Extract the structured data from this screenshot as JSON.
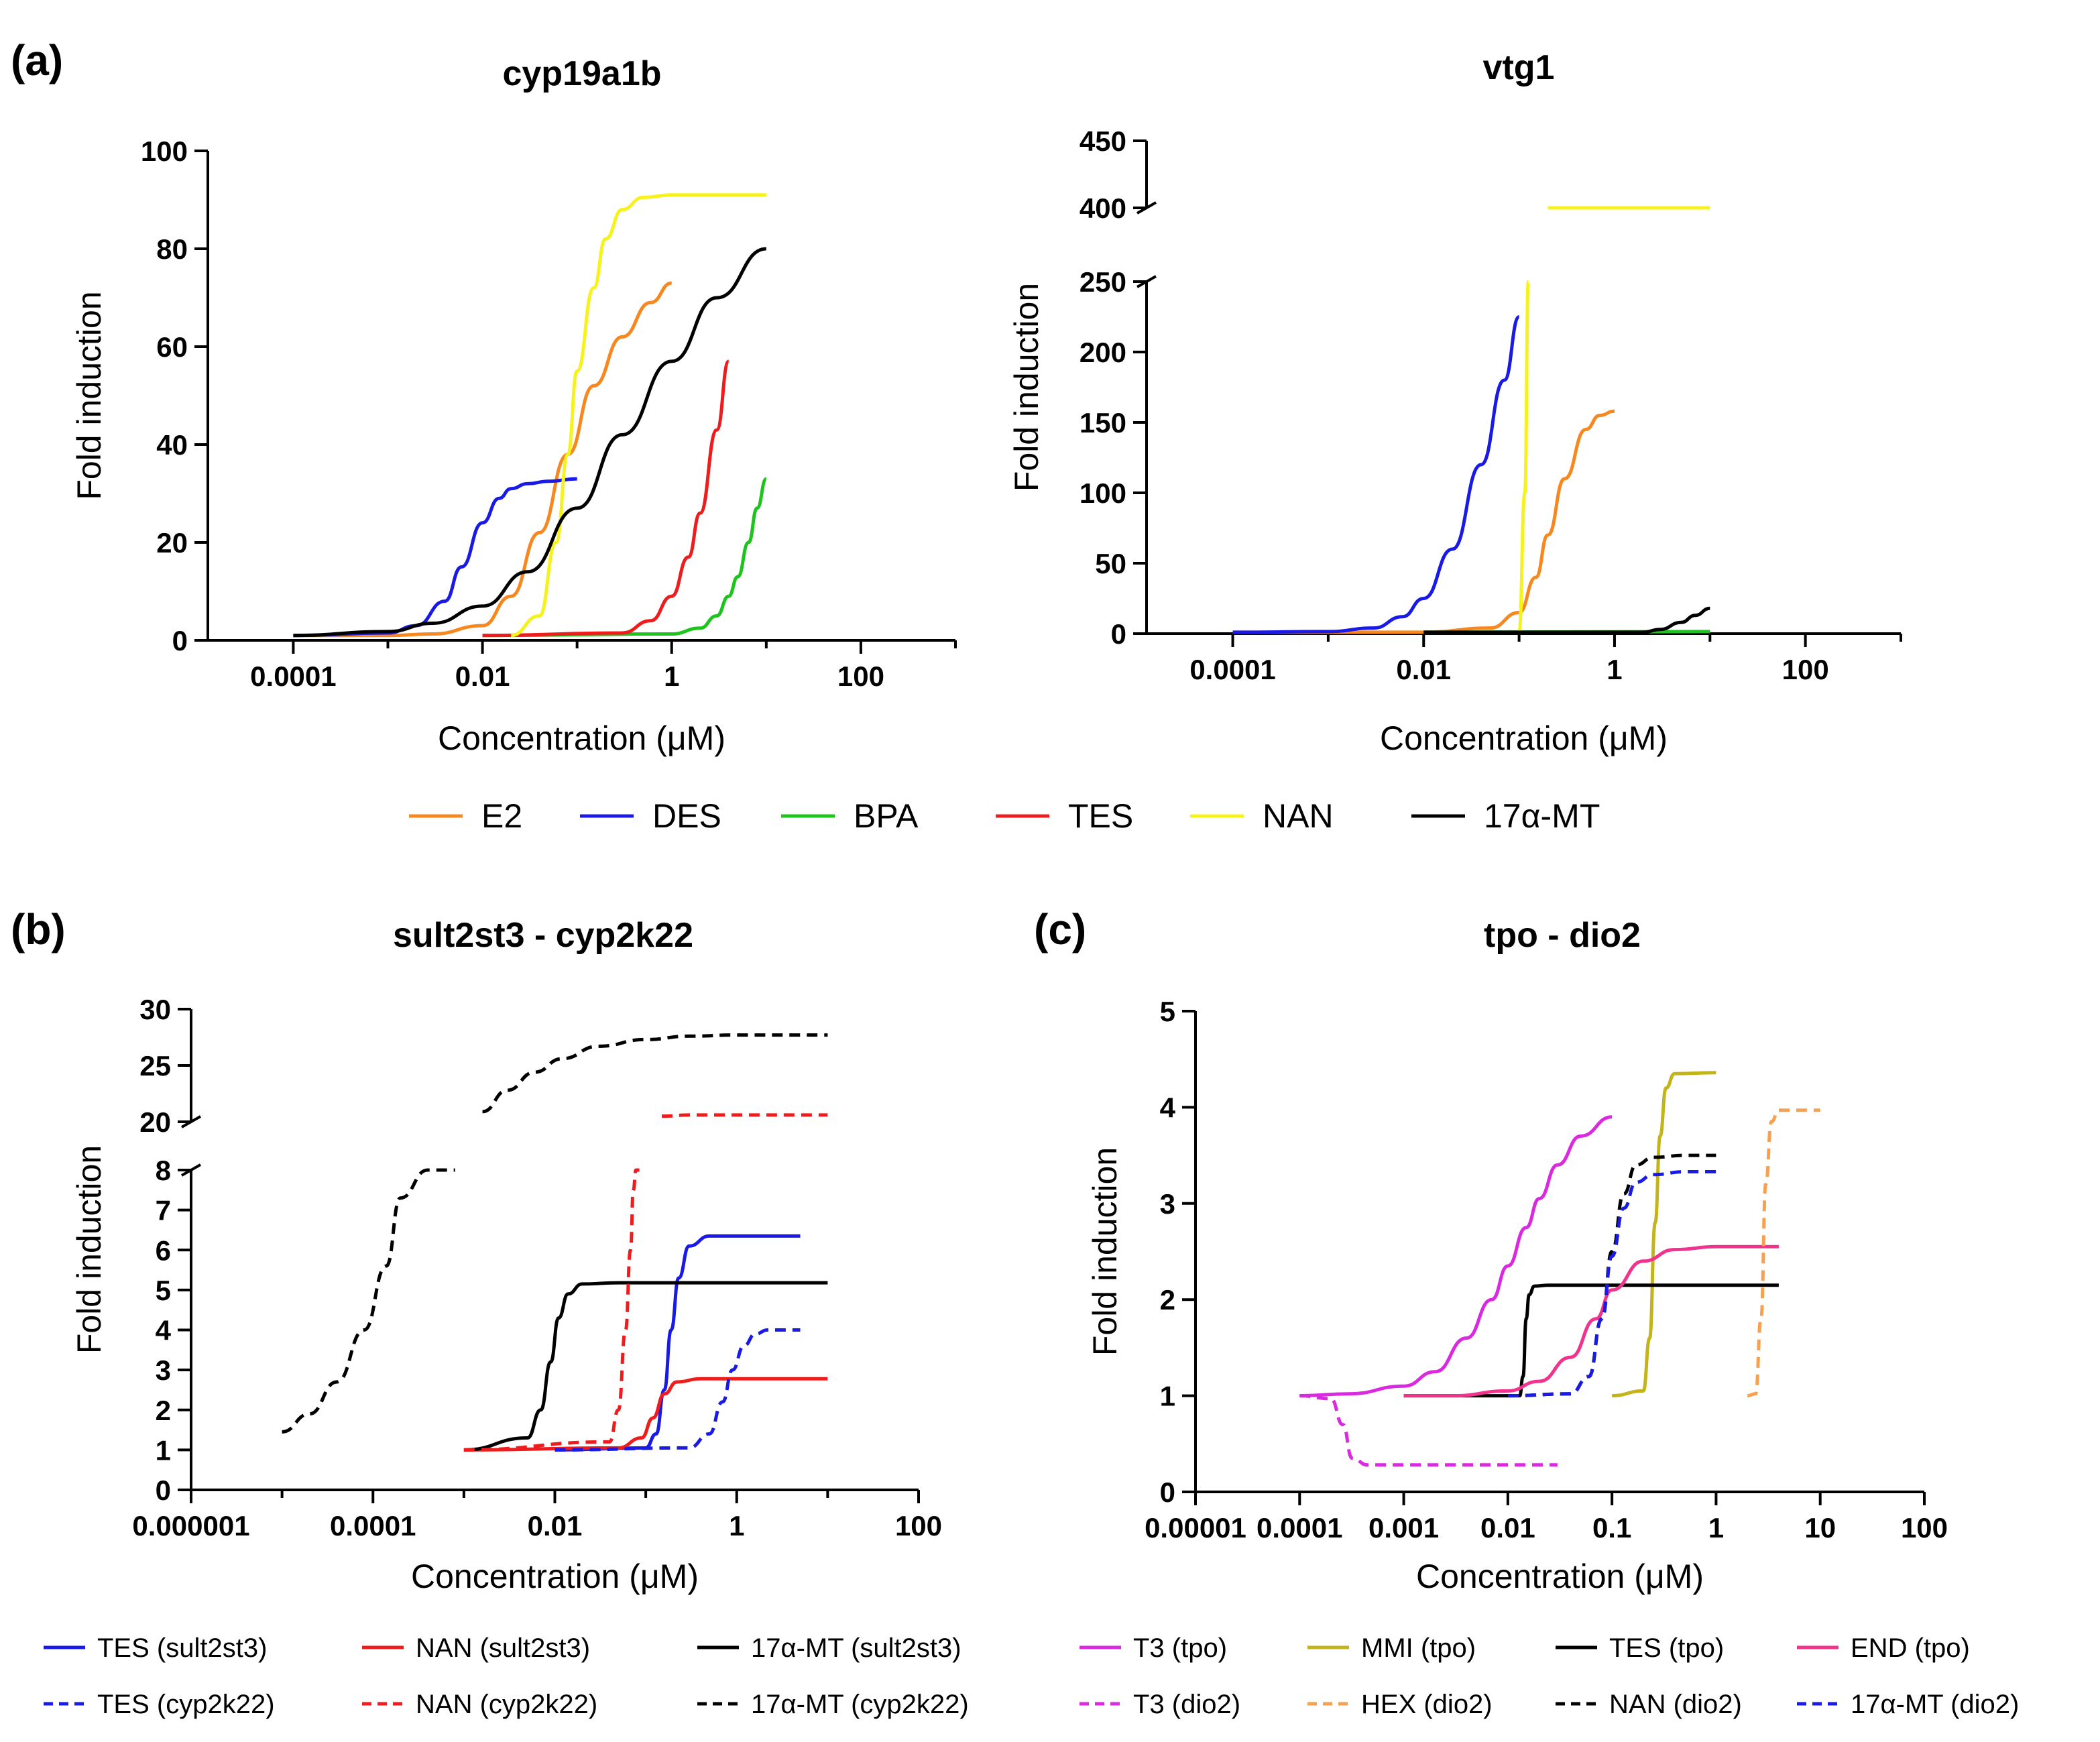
{
  "panel_labels": {
    "a": "(a)",
    "b": "(b)",
    "c": "(c)"
  },
  "legend_a": [
    {
      "label": "E2",
      "color": "#f7871f",
      "dash": false
    },
    {
      "label": "DES",
      "color": "#1a1ae6",
      "dash": false
    },
    {
      "label": "BPA",
      "color": "#1ec41e",
      "dash": false
    },
    {
      "label": "TES",
      "color": "#ee1c1c",
      "dash": false
    },
    {
      "label": "NAN",
      "color": "#f5f21c",
      "dash": false
    },
    {
      "label": "17α-MT",
      "color": "#000000",
      "dash": false
    }
  ],
  "legend_b": [
    {
      "label": "TES (sult2st3)",
      "color": "#1a1ae6",
      "dash": false
    },
    {
      "label": "NAN (sult2st3)",
      "color": "#ee1c1c",
      "dash": false
    },
    {
      "label": "17α-MT (sult2st3)",
      "color": "#000000",
      "dash": false
    },
    {
      "label": "TES (cyp2k22)",
      "color": "#1a1ae6",
      "dash": true
    },
    {
      "label": "NAN (cyp2k22)",
      "color": "#ee1c1c",
      "dash": true
    },
    {
      "label": "17α-MT (cyp2k22)",
      "color": "#000000",
      "dash": true
    }
  ],
  "legend_c": [
    {
      "label": "T3 (tpo)",
      "color": "#d92ae0",
      "dash": false
    },
    {
      "label": "MMI (tpo)",
      "color": "#c2b41a",
      "dash": false
    },
    {
      "label": "TES (tpo)",
      "color": "#000000",
      "dash": false
    },
    {
      "label": "END (tpo)",
      "color": "#f0338c",
      "dash": false
    },
    {
      "label": "T3 (dio2)",
      "color": "#d92ae0",
      "dash": true
    },
    {
      "label": "HEX (dio2)",
      "color": "#f7a050",
      "dash": true
    },
    {
      "label": "NAN (dio2)",
      "color": "#000000",
      "dash": true
    },
    {
      "label": "17α-MT (dio2)",
      "color": "#1a1ae6",
      "dash": true
    }
  ],
  "chart_data": [
    {
      "id": "a1",
      "type": "line",
      "title": "cyp19a1b",
      "xlabel": "Concentration (μM)",
      "ylabel": "Fold induction",
      "xscale": "log",
      "xlim": [
        1.25e-05,
        1000
      ],
      "ylim": [
        0,
        100
      ],
      "xticks": [
        0.0001,
        0.01,
        1,
        100
      ],
      "xtick_labels": [
        "0.0001",
        "0.01",
        "1",
        "100"
      ],
      "yticks": [
        0,
        20,
        40,
        60,
        80,
        100
      ],
      "ytick_labels": [
        "0",
        "20",
        "40",
        "60",
        "80",
        "100"
      ],
      "series": [
        {
          "name": "E2",
          "color": "#f7871f",
          "dash": false,
          "x": [
            0.0001,
            0.001,
            0.003,
            0.01,
            0.02,
            0.04,
            0.08,
            0.15,
            0.3,
            0.6,
            1.0
          ],
          "y": [
            1,
            1,
            1.3,
            3,
            9,
            22,
            38,
            52,
            62,
            69,
            73
          ]
        },
        {
          "name": "DES",
          "color": "#1a1ae6",
          "dash": false,
          "x": [
            0.0001,
            0.001,
            0.002,
            0.004,
            0.006,
            0.01,
            0.015,
            0.02,
            0.03,
            0.05,
            0.1
          ],
          "y": [
            1,
            1.5,
            3,
            8,
            15,
            24,
            29,
            31,
            32,
            32.5,
            33
          ]
        },
        {
          "name": "BPA",
          "color": "#1ec41e",
          "dash": false,
          "x": [
            0.01,
            1,
            2,
            3,
            4,
            5,
            6.5,
            8,
            10
          ],
          "y": [
            1,
            1.3,
            2.5,
            5,
            9,
            13,
            20,
            27,
            33
          ]
        },
        {
          "name": "TES",
          "color": "#ee1c1c",
          "dash": false,
          "x": [
            0.01,
            0.3,
            0.6,
            1.0,
            1.5,
            2.0,
            3.0,
            4.0
          ],
          "y": [
            1,
            1.5,
            4,
            9,
            17,
            26,
            43,
            57
          ]
        },
        {
          "name": "NAN",
          "color": "#f5f21c",
          "dash": false,
          "x": [
            0.02,
            0.04,
            0.06,
            0.08,
            0.1,
            0.15,
            0.2,
            0.3,
            0.5,
            1.0,
            10
          ],
          "y": [
            1,
            5,
            20,
            38,
            55,
            72,
            82,
            88,
            90.5,
            91,
            91
          ]
        },
        {
          "name": "17α-MT",
          "color": "#000000",
          "dash": false,
          "x": [
            0.0001,
            0.001,
            0.003,
            0.01,
            0.03,
            0.1,
            0.3,
            1,
            3,
            10
          ],
          "y": [
            1,
            1.8,
            3.5,
            7,
            14,
            27,
            42,
            57,
            70,
            80
          ]
        }
      ]
    },
    {
      "id": "a2",
      "type": "line",
      "title": "vtg1",
      "xlabel": "Concentration (μM)",
      "ylabel": "Fold induction",
      "xscale": "log",
      "xlim": [
        1.25e-05,
        1000
      ],
      "ylim": [
        0,
        450
      ],
      "axis_break": [
        250,
        400
      ],
      "xticks": [
        0.0001,
        0.01,
        1,
        100
      ],
      "xtick_labels": [
        "0.0001",
        "0.01",
        "1",
        "100"
      ],
      "yticks": [
        0,
        50,
        100,
        150,
        200,
        250,
        400,
        450
      ],
      "ytick_labels": [
        "0",
        "50",
        "100",
        "150",
        "200",
        "250",
        "400",
        "450"
      ],
      "series": [
        {
          "name": "E2",
          "color": "#f7871f",
          "dash": false,
          "x": [
            0.0001,
            0.01,
            0.05,
            0.1,
            0.15,
            0.2,
            0.3,
            0.5,
            0.7,
            1.0
          ],
          "y": [
            1,
            1,
            4,
            15,
            40,
            70,
            110,
            145,
            155,
            158
          ]
        },
        {
          "name": "DES",
          "color": "#1a1ae6",
          "dash": false,
          "x": [
            0.0001,
            0.001,
            0.003,
            0.006,
            0.01,
            0.02,
            0.04,
            0.07,
            0.1
          ],
          "y": [
            1,
            1.5,
            4,
            12,
            25,
            60,
            120,
            180,
            225
          ]
        },
        {
          "name": "BPA",
          "color": "#1ec41e",
          "dash": false,
          "x": [
            0.01,
            10
          ],
          "y": [
            1,
            1.5
          ]
        },
        {
          "name": "NAN",
          "color": "#f5f21c",
          "dash": false,
          "x": [
            0.1,
            0.115,
            0.125,
            0.135,
            0.15,
            0.2,
            10
          ],
          "y": [
            1,
            100,
            250,
            390,
            399,
            400,
            400
          ]
        },
        {
          "name": "17α-MT",
          "color": "#000000",
          "dash": false,
          "x": [
            0.01,
            2,
            3,
            5,
            7,
            10
          ],
          "y": [
            1,
            1,
            3,
            8,
            13,
            18
          ]
        }
      ]
    },
    {
      "id": "b",
      "type": "line",
      "title": "sult2st3 - cyp2k22",
      "xlabel": "Concentration (μM)",
      "ylabel": "Fold induction",
      "xscale": "log",
      "xlim": [
        1e-06,
        100
      ],
      "ylim": [
        0,
        30
      ],
      "axis_break": [
        8,
        20
      ],
      "xticks": [
        1e-06,
        0.0001,
        0.01,
        1,
        100
      ],
      "xtick_labels": [
        "0.000001",
        "0.0001",
        "0.01",
        "1",
        "100"
      ],
      "yticks": [
        0,
        1,
        2,
        3,
        4,
        5,
        6,
        7,
        8,
        20,
        25,
        30
      ],
      "ytick_labels": [
        "0",
        "1",
        "2",
        "3",
        "4",
        "5",
        "6",
        "7",
        "8",
        "20",
        "25",
        "30"
      ],
      "series": [
        {
          "name": "TES (sult2st3)",
          "color": "#1a1ae6",
          "dash": false,
          "x": [
            0.01,
            0.1,
            0.13,
            0.16,
            0.19,
            0.23,
            0.3,
            0.5,
            5
          ],
          "y": [
            1,
            1.05,
            1.4,
            2.5,
            4,
            5.3,
            6.1,
            6.35,
            6.35
          ]
        },
        {
          "name": "NAN (sult2st3)",
          "color": "#ee1c1c",
          "dash": false,
          "x": [
            0.001,
            0.05,
            0.09,
            0.12,
            0.16,
            0.22,
            0.4,
            10
          ],
          "y": [
            1,
            1.05,
            1.3,
            1.8,
            2.4,
            2.7,
            2.78,
            2.78
          ]
        },
        {
          "name": "17α-MT (sult2st3)",
          "color": "#000000",
          "dash": false,
          "x": [
            0.001,
            0.005,
            0.007,
            0.009,
            0.011,
            0.014,
            0.02,
            0.05,
            10
          ],
          "y": [
            1,
            1.3,
            2,
            3.2,
            4.3,
            4.9,
            5.15,
            5.18,
            5.18
          ]
        },
        {
          "name": "TES (cyp2k22)",
          "color": "#1a1ae6",
          "dash": true,
          "x": [
            0.01,
            0.3,
            0.5,
            0.7,
            0.9,
            1.2,
            1.6,
            2.2,
            5
          ],
          "y": [
            1,
            1.05,
            1.4,
            2.2,
            3.0,
            3.6,
            3.9,
            4.0,
            4.0
          ]
        },
        {
          "name": "NAN (cyp2k22)",
          "color": "#ee1c1c",
          "dash": true,
          "x": [
            0.001,
            0.04,
            0.05,
            0.06,
            0.068,
            0.073,
            0.078,
            0.085,
            0.1,
            0.15,
            0.3,
            10
          ],
          "y": [
            1,
            1.2,
            2,
            4,
            6,
            7.5,
            8,
            8,
            19.6,
            20.5,
            20.6,
            20.6
          ]
        },
        {
          "name": "17α-MT (cyp2k22)",
          "color": "#000000",
          "dash": true,
          "x": [
            1e-05,
            2e-05,
            4e-05,
            8e-05,
            0.00014,
            0.0002,
            0.0004,
            0.0008,
            0.0016,
            0.003,
            0.006,
            0.012,
            0.03,
            0.1,
            0.3,
            1,
            10
          ],
          "y": [
            1.45,
            1.9,
            2.7,
            4.0,
            5.6,
            7.3,
            8,
            8,
            20.9,
            22.8,
            24.4,
            25.6,
            26.7,
            27.3,
            27.6,
            27.7,
            27.7
          ]
        }
      ]
    },
    {
      "id": "c",
      "type": "line",
      "title": "tpo - dio2",
      "xlabel": "Concentration (μM)",
      "ylabel": "Fold induction",
      "xscale": "log",
      "xlim": [
        1e-05,
        100
      ],
      "ylim": [
        0,
        5
      ],
      "xticks": [
        1e-05,
        0.0001,
        0.001,
        0.01,
        0.1,
        1,
        10,
        100
      ],
      "xtick_labels": [
        "0.00001",
        "0.0001",
        "0.001",
        "0.01",
        "0.1",
        "1",
        "10",
        "100"
      ],
      "yticks": [
        0,
        1,
        2,
        3,
        4,
        5
      ],
      "ytick_labels": [
        "0",
        "1",
        "2",
        "3",
        "4",
        "5"
      ],
      "series": [
        {
          "name": "T3 (tpo)",
          "color": "#d92ae0",
          "dash": false,
          "x": [
            0.0001,
            0.0003,
            0.001,
            0.002,
            0.004,
            0.007,
            0.01,
            0.015,
            0.02,
            0.03,
            0.05,
            0.1
          ],
          "y": [
            1,
            1.02,
            1.1,
            1.25,
            1.6,
            2.0,
            2.35,
            2.75,
            3.05,
            3.4,
            3.7,
            3.9
          ]
        },
        {
          "name": "T3 (dio2)",
          "color": "#d92ae0",
          "dash": true,
          "x": [
            0.0001,
            0.0002,
            0.00026,
            0.00032,
            0.00045,
            0.03
          ],
          "y": [
            1,
            0.97,
            0.7,
            0.35,
            0.28,
            0.28
          ]
        },
        {
          "name": "MMI (tpo)",
          "color": "#c2b41a",
          "dash": false,
          "x": [
            0.1,
            0.2,
            0.23,
            0.26,
            0.29,
            0.33,
            0.4,
            1.0
          ],
          "y": [
            1,
            1.05,
            1.6,
            2.8,
            3.7,
            4.2,
            4.35,
            4.36
          ]
        },
        {
          "name": "TES (tpo)",
          "color": "#000000",
          "dash": false,
          "x": [
            0.001,
            0.013,
            0.014,
            0.015,
            0.016,
            0.018,
            0.025,
            4
          ],
          "y": [
            1,
            1,
            1.2,
            1.8,
            2.05,
            2.14,
            2.15,
            2.15
          ]
        },
        {
          "name": "END (tpo)",
          "color": "#f0338c",
          "dash": false,
          "x": [
            0.001,
            0.003,
            0.01,
            0.02,
            0.04,
            0.07,
            0.1,
            0.2,
            0.4,
            1,
            4
          ],
          "y": [
            1,
            1,
            1.05,
            1.15,
            1.4,
            1.8,
            2.1,
            2.4,
            2.52,
            2.55,
            2.55
          ]
        },
        {
          "name": "HEX (dio2)",
          "color": "#f7a050",
          "dash": true,
          "x": [
            2,
            2.4,
            2.7,
            3.0,
            3.4,
            4,
            10
          ],
          "y": [
            1,
            1.02,
            1.8,
            3.2,
            3.85,
            3.97,
            3.97
          ]
        },
        {
          "name": "NAN (dio2)",
          "color": "#000000",
          "dash": true,
          "x": [
            0.01,
            0.04,
            0.06,
            0.08,
            0.1,
            0.13,
            0.17,
            0.25,
            0.5,
            1.0
          ],
          "y": [
            1,
            1.02,
            1.2,
            1.8,
            2.5,
            3.1,
            3.4,
            3.48,
            3.5,
            3.5
          ]
        },
        {
          "name": "17α-MT (dio2)",
          "color": "#1a1ae6",
          "dash": true,
          "x": [
            0.01,
            0.04,
            0.06,
            0.08,
            0.1,
            0.13,
            0.17,
            0.25,
            0.5,
            1.0
          ],
          "y": [
            1,
            1.02,
            1.2,
            1.8,
            2.45,
            2.95,
            3.22,
            3.3,
            3.33,
            3.33
          ]
        }
      ]
    }
  ]
}
